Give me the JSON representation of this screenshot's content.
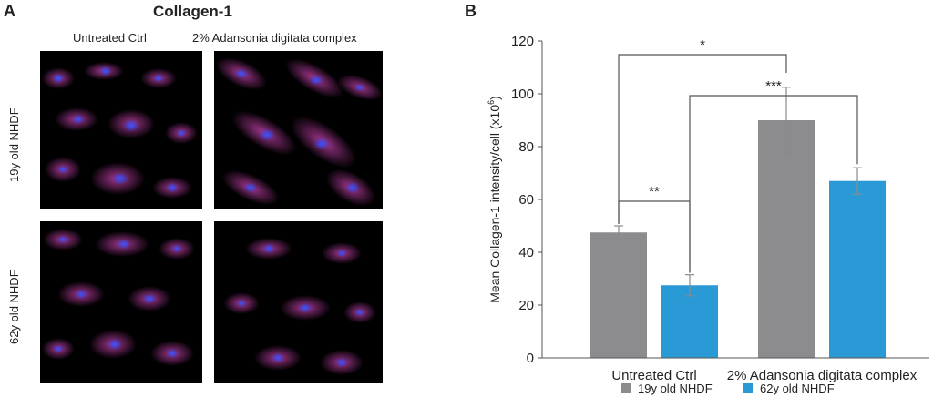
{
  "panel_a": {
    "letter": "A",
    "title": "Collagen-1",
    "columns": [
      "Untreated Ctrl",
      "2% Adansonia digitata complex"
    ],
    "rows": [
      "19y old NHDF",
      "62y old NHDF"
    ]
  },
  "panel_b": {
    "letter": "B"
  },
  "colors": {
    "series1": "#8c8c8e",
    "series2": "#2a9ad6",
    "axis": "#555555",
    "cell_stain": "#c040a8",
    "nuclei": "#2840e0"
  },
  "chart_data": {
    "type": "bar",
    "categories": [
      "Untreated Ctrl",
      "2% Adansonia digitata complex"
    ],
    "series": [
      {
        "name": "19y old NHDF",
        "values": [
          47.5,
          90
        ],
        "errors": [
          2.5,
          12.5
        ]
      },
      {
        "name": "62y old NHDF",
        "values": [
          27.5,
          67
        ],
        "errors": [
          4,
          5
        ]
      }
    ],
    "ylabel_main": "Mean Collagen-1 intensity/cell (x10",
    "ylabel_sup": "6",
    "ylabel_tail": ")",
    "ylim": [
      0,
      120
    ],
    "yticks": [
      0,
      20,
      40,
      60,
      80,
      100,
      120
    ],
    "significance": [
      "*",
      "***",
      "**"
    ],
    "legend_position": "bottom-center"
  }
}
